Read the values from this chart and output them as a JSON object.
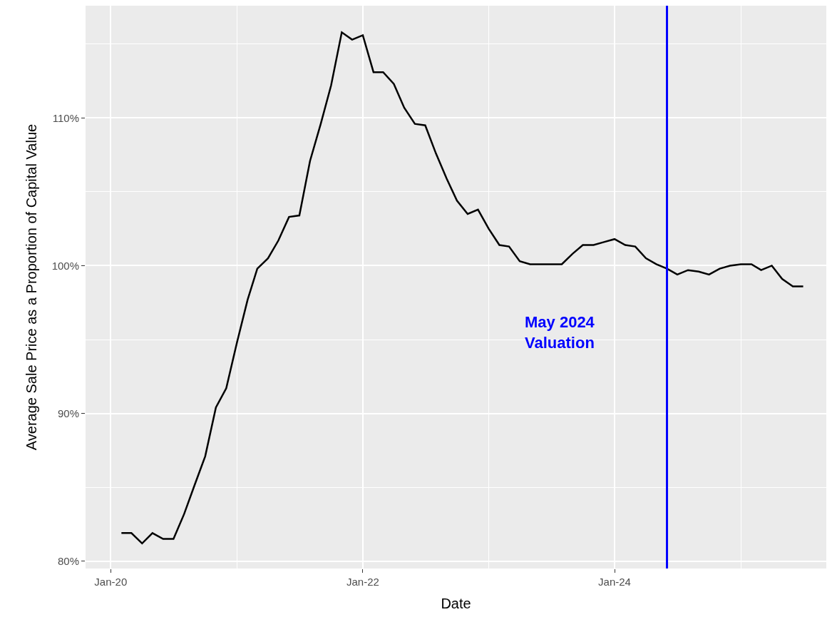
{
  "chart_data": {
    "type": "line",
    "xlabel": "Date",
    "ylabel": "Average Sale Price as a Proportion of Capital Value",
    "x": [
      "2020-02",
      "2020-03",
      "2020-04",
      "2020-05",
      "2020-06",
      "2020-07",
      "2020-08",
      "2020-09",
      "2020-10",
      "2020-11",
      "2020-12",
      "2021-01",
      "2021-02",
      "2021-03",
      "2021-04",
      "2021-05",
      "2021-06",
      "2021-07",
      "2021-08",
      "2021-09",
      "2021-10",
      "2021-11",
      "2021-12",
      "2022-01",
      "2022-02",
      "2022-03",
      "2022-04",
      "2022-05",
      "2022-06",
      "2022-07",
      "2022-08",
      "2022-09",
      "2022-10",
      "2022-11",
      "2022-12",
      "2023-01",
      "2023-02",
      "2023-03",
      "2023-04",
      "2023-05",
      "2023-06",
      "2023-07",
      "2023-08",
      "2023-09",
      "2023-10",
      "2023-11",
      "2023-12",
      "2024-01",
      "2024-02",
      "2024-03",
      "2024-04",
      "2024-05",
      "2024-06",
      "2024-07",
      "2024-08",
      "2024-09",
      "2024-10",
      "2024-11",
      "2024-12",
      "2025-01",
      "2025-02",
      "2025-03",
      "2025-04",
      "2025-05",
      "2025-06",
      "2025-07"
    ],
    "series": [
      {
        "color": "#000000",
        "values": [
          81.9,
          81.9,
          81.2,
          81.9,
          81.5,
          81.5,
          83.2,
          85.2,
          87.1,
          90.4,
          91.7,
          94.8,
          97.7,
          99.8,
          100.5,
          101.7,
          103.3,
          103.4,
          107.1,
          109.6,
          112.2,
          115.8,
          115.3,
          115.6,
          113.1,
          113.1,
          112.3,
          110.7,
          109.6,
          109.5,
          107.6,
          105.9,
          104.4,
          103.5,
          103.8,
          102.5,
          101.4,
          101.3,
          100.3,
          100.1,
          100.1,
          100.1,
          100.1,
          100.8,
          101.4,
          101.4,
          101.6,
          101.8,
          101.4,
          101.3,
          100.5,
          100.1,
          99.8,
          99.4,
          99.7,
          99.6,
          99.4,
          99.8,
          100.0,
          100.1,
          100.1,
          99.7,
          100.0,
          99.1,
          98.6,
          98.6
        ]
      }
    ],
    "xlim": [
      "2019-10-20",
      "2025-09-06"
    ],
    "xticks": [
      {
        "value": "2020-01-01",
        "label": "Jan-20"
      },
      {
        "value": "2021-01-01",
        "label": null
      },
      {
        "value": "2022-01-01",
        "label": "Jan-22"
      },
      {
        "value": "2023-01-01",
        "label": null
      },
      {
        "value": "2024-01-01",
        "label": "Jan-24"
      },
      {
        "value": "2025-01-01",
        "label": null
      }
    ],
    "ylim": [
      79.5,
      117.6
    ],
    "yticks": [
      {
        "value": 80,
        "label": "80%"
      },
      {
        "value": 85,
        "label": null
      },
      {
        "value": 90,
        "label": "90%"
      },
      {
        "value": 95,
        "label": null
      },
      {
        "value": 100,
        "label": "100%"
      },
      {
        "value": 105,
        "label": null
      },
      {
        "value": 110,
        "label": "110%"
      },
      {
        "value": 115,
        "label": null
      }
    ],
    "ref_lines": [
      {
        "axis": "x",
        "value": "2024-06-01",
        "label": "May 2024\nValuation",
        "color": "#0000ff",
        "line_style": "solid"
      }
    ],
    "grid": true,
    "line_style": "solid",
    "marker": "none"
  }
}
